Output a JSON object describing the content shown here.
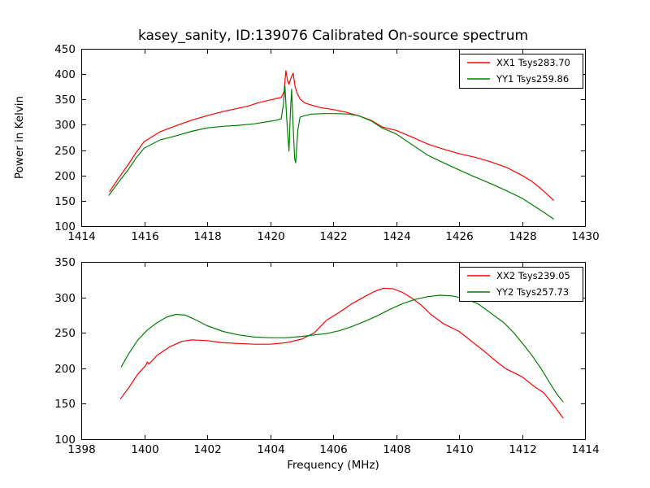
{
  "figure": {
    "title": "kasey_sanity, ID:139076 Calibrated On-source spectrum",
    "background_color": "#ffffff",
    "axis_color": "#000000"
  },
  "chart_data": [
    {
      "type": "line",
      "title": "kasey_sanity, ID:139076 Calibrated On-source spectrum",
      "xlabel": "",
      "ylabel": "Power in Kelvin",
      "xlim": [
        1414,
        1430
      ],
      "ylim": [
        100,
        450
      ],
      "xticks": [
        1414,
        1416,
        1418,
        1420,
        1422,
        1424,
        1426,
        1428,
        1430
      ],
      "yticks": [
        100,
        150,
        200,
        250,
        300,
        350,
        400,
        450
      ],
      "grid": false,
      "legend_position": "upper right",
      "series": [
        {
          "name": "XX1 Tsys283.70",
          "color": "#ff0000",
          "points": [
            [
              1414.9,
              168
            ],
            [
              1415.2,
              196
            ],
            [
              1415.5,
              222
            ],
            [
              1415.75,
              246
            ],
            [
              1416,
              267
            ],
            [
              1416.5,
              286
            ],
            [
              1417,
              298
            ],
            [
              1417.5,
              309
            ],
            [
              1418,
              318
            ],
            [
              1418.5,
              326
            ],
            [
              1419,
              333
            ],
            [
              1419.3,
              337
            ],
            [
              1419.6,
              343
            ],
            [
              1420,
              349
            ],
            [
              1420.2,
              352
            ],
            [
              1420.35,
              354
            ],
            [
              1420.44,
              365
            ],
            [
              1420.5,
              407
            ],
            [
              1420.55,
              388
            ],
            [
              1420.6,
              380
            ],
            [
              1420.66,
              392
            ],
            [
              1420.73,
              402
            ],
            [
              1420.79,
              376
            ],
            [
              1420.86,
              362
            ],
            [
              1420.95,
              351
            ],
            [
              1421.1,
              343
            ],
            [
              1421.3,
              339
            ],
            [
              1421.6,
              334
            ],
            [
              1422,
              330
            ],
            [
              1422.4,
              325
            ],
            [
              1422.8,
              318
            ],
            [
              1423.2,
              309
            ],
            [
              1423.55,
              296
            ],
            [
              1424,
              289
            ],
            [
              1424.5,
              276
            ],
            [
              1425,
              262
            ],
            [
              1425.5,
              252
            ],
            [
              1426,
              243
            ],
            [
              1426.5,
              236
            ],
            [
              1427,
              227
            ],
            [
              1427.5,
              216
            ],
            [
              1428,
              200
            ],
            [
              1428.3,
              189
            ],
            [
              1428.6,
              174
            ],
            [
              1429,
              151
            ]
          ]
        },
        {
          "name": "YY1 Tsys259.86",
          "color": "#008000",
          "points": [
            [
              1414.88,
              161
            ],
            [
              1415.2,
              188
            ],
            [
              1415.5,
              212
            ],
            [
              1415.75,
              235
            ],
            [
              1416,
              254
            ],
            [
              1416.5,
              270
            ],
            [
              1417,
              278
            ],
            [
              1417.5,
              287
            ],
            [
              1418,
              294
            ],
            [
              1418.5,
              297
            ],
            [
              1419,
              299
            ],
            [
              1419.5,
              302
            ],
            [
              1420,
              307
            ],
            [
              1420.2,
              309
            ],
            [
              1420.35,
              312
            ],
            [
              1420.42,
              340
            ],
            [
              1420.47,
              377
            ],
            [
              1420.52,
              320
            ],
            [
              1420.56,
              280
            ],
            [
              1420.6,
              248
            ],
            [
              1420.64,
              320
            ],
            [
              1420.68,
              370
            ],
            [
              1420.72,
              310
            ],
            [
              1420.78,
              232
            ],
            [
              1420.81,
              225
            ],
            [
              1420.88,
              290
            ],
            [
              1420.95,
              315
            ],
            [
              1421.1,
              318
            ],
            [
              1421.3,
              321
            ],
            [
              1421.7,
              322
            ],
            [
              1422.1,
              322
            ],
            [
              1422.5,
              321
            ],
            [
              1422.8,
              318
            ],
            [
              1423.2,
              308
            ],
            [
              1423.55,
              294
            ],
            [
              1424,
              282
            ],
            [
              1424.5,
              261
            ],
            [
              1425,
              240
            ],
            [
              1425.5,
              225
            ],
            [
              1426,
              211
            ],
            [
              1426.5,
              197
            ],
            [
              1427,
              184
            ],
            [
              1427.5,
              170
            ],
            [
              1428,
              155
            ],
            [
              1428.4,
              139
            ],
            [
              1428.7,
              127
            ],
            [
              1429,
              114
            ]
          ]
        }
      ]
    },
    {
      "type": "line",
      "title": "",
      "xlabel": "Frequency (MHz)",
      "ylabel": "",
      "xlim": [
        1398,
        1414
      ],
      "ylim": [
        100,
        350
      ],
      "xticks": [
        1398,
        1400,
        1402,
        1404,
        1406,
        1408,
        1410,
        1412,
        1414
      ],
      "yticks": [
        100,
        150,
        200,
        250,
        300,
        350
      ],
      "grid": false,
      "legend_position": "upper right",
      "series": [
        {
          "name": "XX2 Tsys239.05",
          "color": "#ff0000",
          "points": [
            [
              1399.25,
              157
            ],
            [
              1399.5,
              172
            ],
            [
              1399.8,
              192
            ],
            [
              1400.05,
              204
            ],
            [
              1400.1,
              209
            ],
            [
              1400.15,
              206
            ],
            [
              1400.4,
              218
            ],
            [
              1400.8,
              230
            ],
            [
              1401.2,
              238
            ],
            [
              1401.5,
              240
            ],
            [
              1402,
              239
            ],
            [
              1402.5,
              236
            ],
            [
              1403,
              235
            ],
            [
              1403.5,
              234
            ],
            [
              1404,
              234
            ],
            [
              1404.5,
              236
            ],
            [
              1405,
              241
            ],
            [
              1405.4,
              250
            ],
            [
              1405.8,
              268
            ],
            [
              1406.2,
              279
            ],
            [
              1406.6,
              291
            ],
            [
              1407,
              301
            ],
            [
              1407.3,
              308
            ],
            [
              1407.6,
              313
            ],
            [
              1407.9,
              312
            ],
            [
              1408.2,
              307
            ],
            [
              1408.5,
              299
            ],
            [
              1408.8,
              289
            ],
            [
              1409.1,
              276
            ],
            [
              1409.5,
              263
            ],
            [
              1410,
              252
            ],
            [
              1410.4,
              238
            ],
            [
              1410.8,
              224
            ],
            [
              1411.2,
              209
            ],
            [
              1411.5,
              199
            ],
            [
              1412,
              188
            ],
            [
              1412.4,
              174
            ],
            [
              1412.7,
              165
            ],
            [
              1413,
              148
            ],
            [
              1413.3,
              130
            ]
          ]
        },
        {
          "name": "YY2 Tsys257.73",
          "color": "#008000",
          "points": [
            [
              1399.27,
              202
            ],
            [
              1399.5,
              220
            ],
            [
              1399.8,
              240
            ],
            [
              1400.1,
              254
            ],
            [
              1400.4,
              264
            ],
            [
              1400.7,
              272
            ],
            [
              1401,
              276
            ],
            [
              1401.3,
              275
            ],
            [
              1401.6,
              269
            ],
            [
              1402,
              260
            ],
            [
              1402.5,
              252
            ],
            [
              1403,
              247
            ],
            [
              1403.5,
              244
            ],
            [
              1404,
              243
            ],
            [
              1404.5,
              243
            ],
            [
              1405,
              245
            ],
            [
              1405.4,
              247
            ],
            [
              1405.8,
              249
            ],
            [
              1406.2,
              253
            ],
            [
              1406.6,
              259
            ],
            [
              1407,
              266
            ],
            [
              1407.4,
              274
            ],
            [
              1407.8,
              283
            ],
            [
              1408.2,
              291
            ],
            [
              1408.6,
              297
            ],
            [
              1409,
              301
            ],
            [
              1409.4,
              303
            ],
            [
              1409.8,
              302
            ],
            [
              1410.2,
              298
            ],
            [
              1410.6,
              291
            ],
            [
              1411,
              278
            ],
            [
              1411.4,
              265
            ],
            [
              1411.7,
              252
            ],
            [
              1412,
              236
            ],
            [
              1412.3,
              219
            ],
            [
              1412.6,
              200
            ],
            [
              1412.9,
              178
            ],
            [
              1413.1,
              164
            ],
            [
              1413.3,
              153
            ]
          ]
        }
      ]
    }
  ]
}
